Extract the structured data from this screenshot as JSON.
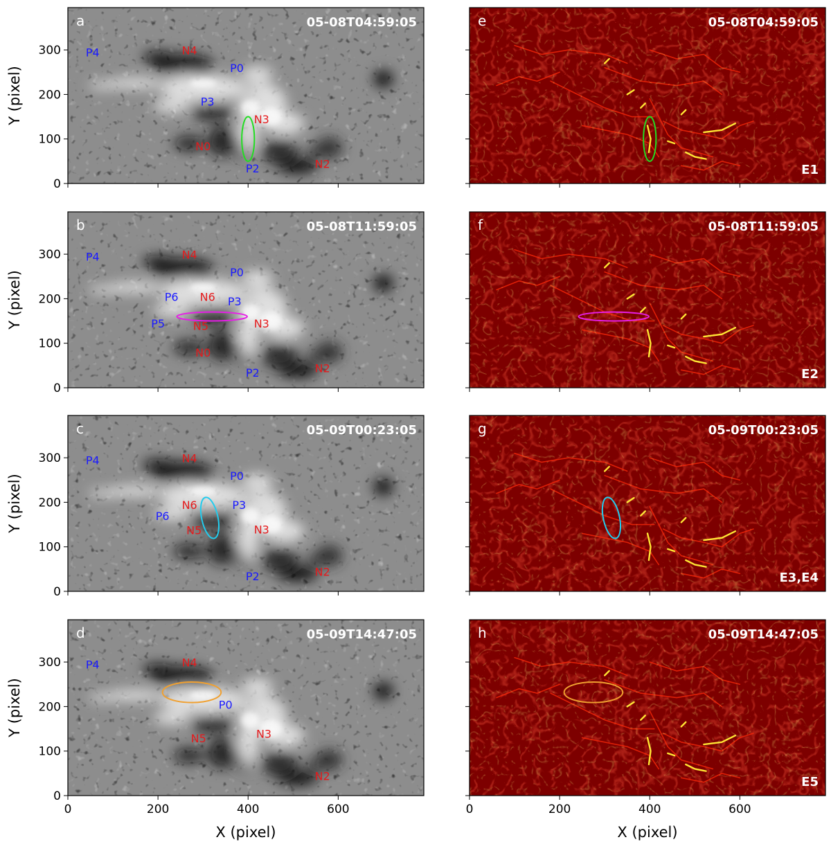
{
  "chart_data": [
    {
      "type": "heatmap",
      "panel": "a",
      "timestamp": "05-08T04:59:05",
      "map": "magnetogram",
      "xlabel": "",
      "ylabel": "Y (pixel)",
      "xlim": [
        0,
        790
      ],
      "ylim": [
        0,
        395
      ],
      "xticks": [
        0,
        200,
        400,
        600
      ],
      "yticks": [
        0,
        100,
        200,
        300
      ],
      "show_xticklabels": false,
      "labels": [
        {
          "text": "P4",
          "x": 55,
          "y": 285,
          "color": "#1a1aff"
        },
        {
          "text": "N4",
          "x": 270,
          "y": 290,
          "color": "#e41a1c"
        },
        {
          "text": "P0",
          "x": 375,
          "y": 250,
          "color": "#1a1aff"
        },
        {
          "text": "P3",
          "x": 310,
          "y": 175,
          "color": "#1a1aff"
        },
        {
          "text": "N3",
          "x": 430,
          "y": 135,
          "color": "#e41a1c"
        },
        {
          "text": "N0",
          "x": 300,
          "y": 75,
          "color": "#e41a1c"
        },
        {
          "text": "P2",
          "x": 410,
          "y": 25,
          "color": "#1a1aff"
        },
        {
          "text": "N2",
          "x": 565,
          "y": 35,
          "color": "#e41a1c"
        }
      ],
      "ellipse": {
        "cx": 400,
        "cy": 100,
        "rx": 14,
        "ry": 50,
        "angle": 0,
        "color": "#22dd22"
      }
    },
    {
      "type": "heatmap",
      "panel": "b",
      "timestamp": "05-08T11:59:05",
      "map": "magnetogram",
      "xlabel": "",
      "ylabel": "Y (pixel)",
      "xlim": [
        0,
        790
      ],
      "ylim": [
        0,
        395
      ],
      "xticks": [
        0,
        200,
        400,
        600
      ],
      "yticks": [
        0,
        100,
        200,
        300
      ],
      "show_xticklabels": false,
      "labels": [
        {
          "text": "P4",
          "x": 55,
          "y": 285,
          "color": "#1a1aff"
        },
        {
          "text": "N4",
          "x": 270,
          "y": 290,
          "color": "#e41a1c"
        },
        {
          "text": "P0",
          "x": 375,
          "y": 250,
          "color": "#1a1aff"
        },
        {
          "text": "P6",
          "x": 230,
          "y": 195,
          "color": "#1a1aff"
        },
        {
          "text": "N6",
          "x": 310,
          "y": 195,
          "color": "#e41a1c"
        },
        {
          "text": "P3",
          "x": 370,
          "y": 185,
          "color": "#1a1aff"
        },
        {
          "text": "P5",
          "x": 200,
          "y": 135,
          "color": "#1a1aff"
        },
        {
          "text": "N5",
          "x": 295,
          "y": 130,
          "color": "#e41a1c"
        },
        {
          "text": "N3",
          "x": 430,
          "y": 135,
          "color": "#e41a1c"
        },
        {
          "text": "N0",
          "x": 300,
          "y": 70,
          "color": "#e41a1c"
        },
        {
          "text": "P2",
          "x": 410,
          "y": 25,
          "color": "#1a1aff"
        },
        {
          "text": "N2",
          "x": 565,
          "y": 35,
          "color": "#e41a1c"
        }
      ],
      "ellipse": {
        "cx": 320,
        "cy": 160,
        "rx": 78,
        "ry": 10,
        "angle": 0,
        "color": "#e61ee6"
      }
    },
    {
      "type": "heatmap",
      "panel": "c",
      "timestamp": "05-09T00:23:05",
      "map": "magnetogram",
      "xlabel": "",
      "ylabel": "Y (pixel)",
      "xlim": [
        0,
        790
      ],
      "ylim": [
        0,
        395
      ],
      "xticks": [
        0,
        200,
        400,
        600
      ],
      "yticks": [
        0,
        100,
        200,
        300
      ],
      "show_xticklabels": false,
      "labels": [
        {
          "text": "P4",
          "x": 55,
          "y": 285,
          "color": "#1a1aff"
        },
        {
          "text": "N4",
          "x": 270,
          "y": 290,
          "color": "#e41a1c"
        },
        {
          "text": "P0",
          "x": 375,
          "y": 250,
          "color": "#1a1aff"
        },
        {
          "text": "N6",
          "x": 270,
          "y": 185,
          "color": "#e41a1c"
        },
        {
          "text": "P3",
          "x": 380,
          "y": 185,
          "color": "#1a1aff"
        },
        {
          "text": "P6",
          "x": 210,
          "y": 160,
          "color": "#1a1aff"
        },
        {
          "text": "N5",
          "x": 280,
          "y": 128,
          "color": "#e41a1c"
        },
        {
          "text": "N3",
          "x": 430,
          "y": 130,
          "color": "#e41a1c"
        },
        {
          "text": "P2",
          "x": 410,
          "y": 25,
          "color": "#1a1aff"
        },
        {
          "text": "N2",
          "x": 565,
          "y": 35,
          "color": "#e41a1c"
        }
      ],
      "ellipse": {
        "cx": 315,
        "cy": 165,
        "rx": 18,
        "ry": 47,
        "angle": -12,
        "color": "#22ccee"
      }
    },
    {
      "type": "heatmap",
      "panel": "d",
      "timestamp": "05-09T14:47:05",
      "map": "magnetogram",
      "xlabel": "X (pixel)",
      "ylabel": "Y (pixel)",
      "xlim": [
        0,
        790
      ],
      "ylim": [
        0,
        395
      ],
      "xticks": [
        0,
        200,
        400,
        600
      ],
      "yticks": [
        0,
        100,
        200,
        300
      ],
      "show_xticklabels": true,
      "labels": [
        {
          "text": "P4",
          "x": 55,
          "y": 285,
          "color": "#1a1aff"
        },
        {
          "text": "N4",
          "x": 270,
          "y": 290,
          "color": "#e41a1c"
        },
        {
          "text": "P0",
          "x": 350,
          "y": 195,
          "color": "#1a1aff"
        },
        {
          "text": "N5",
          "x": 290,
          "y": 120,
          "color": "#e41a1c"
        },
        {
          "text": "N3",
          "x": 435,
          "y": 130,
          "color": "#e41a1c"
        },
        {
          "text": "N2",
          "x": 565,
          "y": 35,
          "color": "#e41a1c"
        }
      ],
      "ellipse": {
        "cx": 275,
        "cy": 232,
        "rx": 65,
        "ry": 23,
        "angle": 0,
        "color": "#f0a030"
      }
    },
    {
      "type": "heatmap",
      "panel": "e",
      "timestamp": "05-08T04:59:05",
      "map": "energy",
      "event": "E1",
      "xlabel": "",
      "ylabel": "",
      "xlim": [
        0,
        790
      ],
      "ylim": [
        0,
        395
      ],
      "xticks": [
        0,
        200,
        400,
        600
      ],
      "yticks": [
        0,
        100,
        200,
        300
      ],
      "show_xticklabels": false,
      "ellipse": {
        "cx": 400,
        "cy": 100,
        "rx": 14,
        "ry": 50,
        "angle": 0,
        "color": "#22dd22"
      }
    },
    {
      "type": "heatmap",
      "panel": "f",
      "timestamp": "05-08T11:59:05",
      "map": "energy",
      "event": "E2",
      "xlabel": "",
      "ylabel": "",
      "xlim": [
        0,
        790
      ],
      "ylim": [
        0,
        395
      ],
      "xticks": [
        0,
        200,
        400,
        600
      ],
      "yticks": [
        0,
        100,
        200,
        300
      ],
      "show_xticklabels": false,
      "ellipse": {
        "cx": 320,
        "cy": 160,
        "rx": 78,
        "ry": 10,
        "angle": 0,
        "color": "#e61ee6"
      }
    },
    {
      "type": "heatmap",
      "panel": "g",
      "timestamp": "05-09T00:23:05",
      "map": "energy",
      "event": "E3,E4",
      "xlabel": "",
      "ylabel": "",
      "xlim": [
        0,
        790
      ],
      "ylim": [
        0,
        395
      ],
      "xticks": [
        0,
        200,
        400,
        600
      ],
      "yticks": [
        0,
        100,
        200,
        300
      ],
      "show_xticklabels": false,
      "ellipse": {
        "cx": 315,
        "cy": 165,
        "rx": 18,
        "ry": 47,
        "angle": -12,
        "color": "#22ccee"
      }
    },
    {
      "type": "heatmap",
      "panel": "h",
      "timestamp": "05-09T14:47:05",
      "map": "energy",
      "event": "E5",
      "xlabel": "X (pixel)",
      "ylabel": "",
      "xlim": [
        0,
        790
      ],
      "ylim": [
        0,
        395
      ],
      "xticks": [
        0,
        200,
        400,
        600
      ],
      "yticks": [
        0,
        100,
        200,
        300
      ],
      "show_xticklabels": true,
      "ellipse": {
        "cx": 275,
        "cy": 232,
        "rx": 65,
        "ry": 23,
        "angle": 0,
        "color": "#f0a030"
      }
    }
  ]
}
